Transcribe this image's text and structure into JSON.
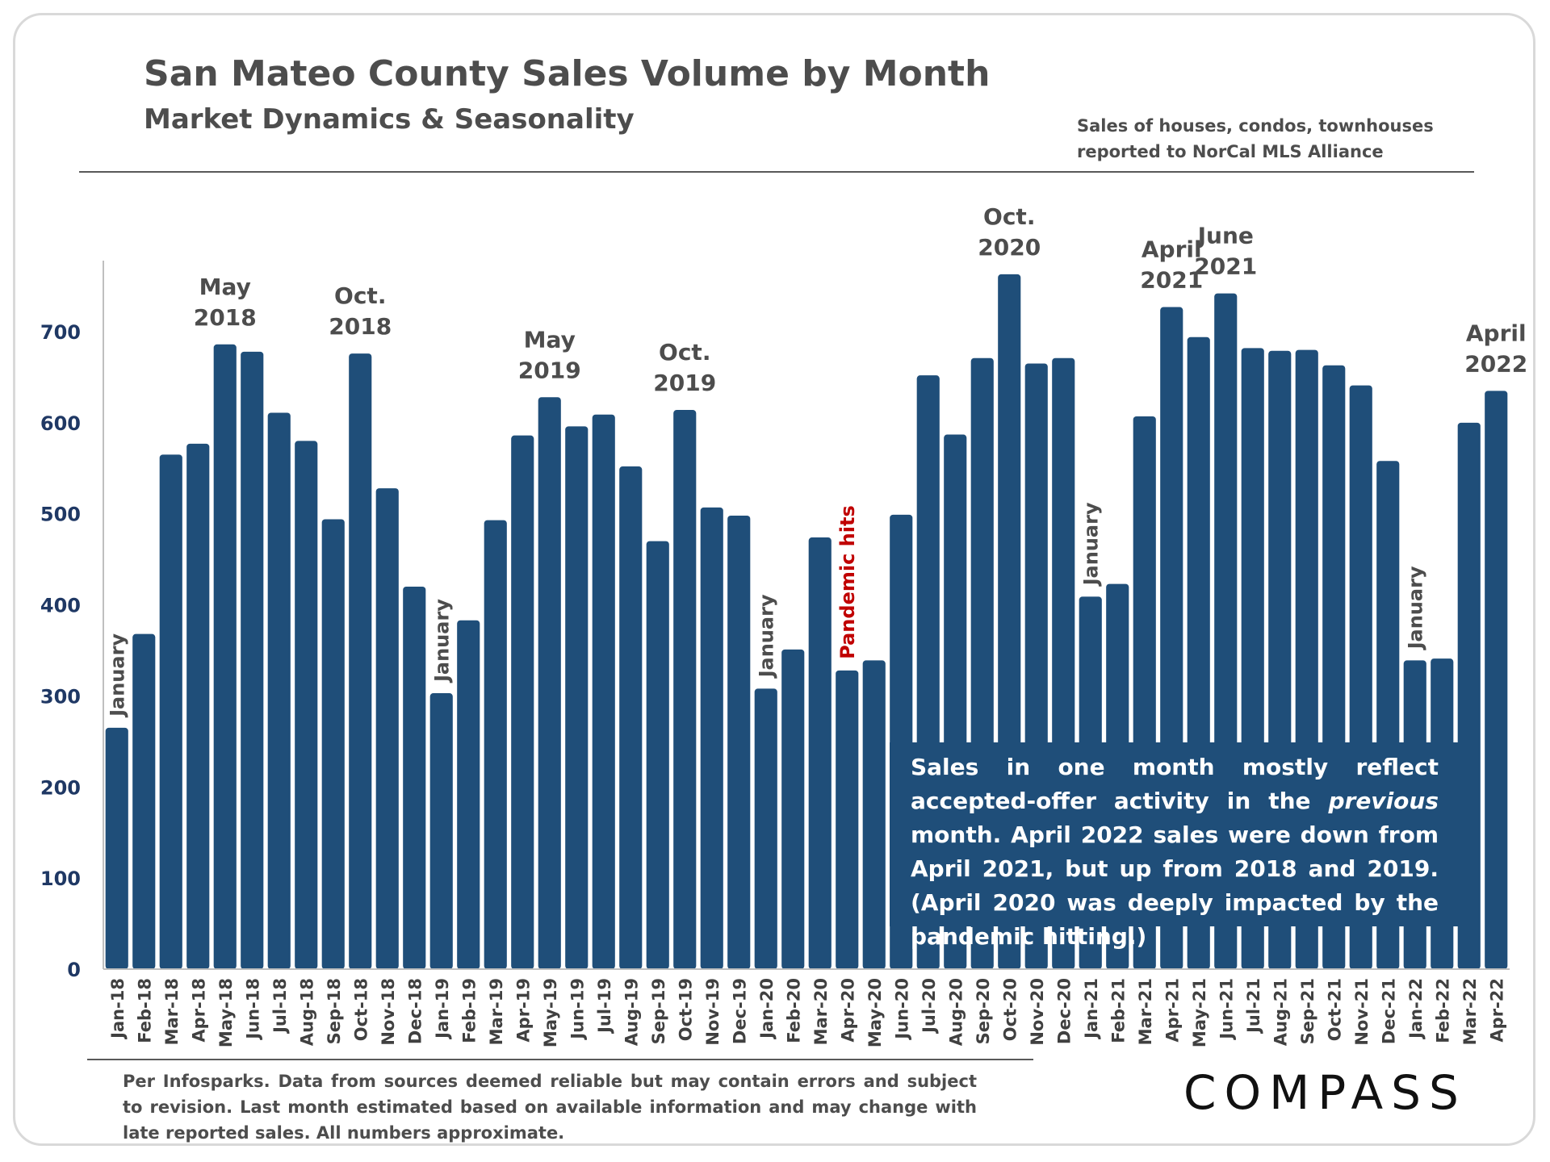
{
  "header": {
    "title": "San Mateo County Sales Volume by Month",
    "subtitle": "Market Dynamics & Seasonality",
    "source_lines": [
      "Sales of houses, condos, townhouses",
      "reported to NorCal MLS Alliance"
    ]
  },
  "callout": {
    "before_italic": "Sales in one month mostly reflect accepted-offer activity in the ",
    "italic": "previous",
    "after_italic": " month. April 2022 sales were down from April 2021, but up from 2018 and 2019. (April 2020 was deeply impacted by the pandemic hitting.)"
  },
  "footnote": "Per Infosparks. Data from sources deemed reliable but may contain errors and subject to revision. Last month estimated based on available information and may change with late reported sales. All numbers approximate.",
  "logo_text": "COMPASS",
  "colors": {
    "bar": "#1f4e79",
    "text": "#4d4d4d",
    "pandemic": "#c00000",
    "tick_label": "#1f3864"
  },
  "chart_data": {
    "type": "bar",
    "title": "San Mateo County Sales Volume by Month",
    "subtitle": "Market Dynamics & Seasonality",
    "categories": [
      "Jan-18",
      "Feb-18",
      "Mar-18",
      "Apr-18",
      "May-18",
      "Jun-18",
      "Jul-18",
      "Aug-18",
      "Sep-18",
      "Oct-18",
      "Nov-18",
      "Dec-18",
      "Jan-19",
      "Feb-19",
      "Mar-19",
      "Apr-19",
      "May-19",
      "Jun-19",
      "Jul-19",
      "Aug-19",
      "Sep-19",
      "Oct-19",
      "Nov-19",
      "Dec-19",
      "Jan-20",
      "Feb-20",
      "Mar-20",
      "Apr-20",
      "May-20",
      "Jun-20",
      "Jul-20",
      "Aug-20",
      "Sep-20",
      "Oct-20",
      "Nov-20",
      "Dec-20",
      "Jan-21",
      "Feb-21",
      "Mar-21",
      "Apr-21",
      "May-21",
      "Jun-21",
      "Jul-21",
      "Aug-21",
      "Sep-21",
      "Oct-21",
      "Nov-21",
      "Dec-21",
      "Jan-22",
      "Feb-22",
      "Mar-22",
      "Apr-22"
    ],
    "values": [
      265,
      368,
      565,
      577,
      686,
      678,
      611,
      580,
      494,
      676,
      528,
      420,
      303,
      383,
      493,
      586,
      628,
      596,
      609,
      552,
      470,
      614,
      507,
      498,
      308,
      351,
      474,
      328,
      339,
      499,
      652,
      587,
      671,
      763,
      665,
      671,
      409,
      423,
      607,
      727,
      694,
      742,
      682,
      679,
      680,
      663,
      641,
      558,
      339,
      341,
      600,
      635
    ],
    "ylim": [
      0,
      780
    ],
    "yticks": [
      0,
      100,
      200,
      300,
      400,
      500,
      600,
      700
    ],
    "xlabel": "",
    "ylabel": "",
    "grid": false,
    "annotations": [
      {
        "index": 4,
        "lines": [
          "May",
          "2018"
        ]
      },
      {
        "index": 9,
        "lines": [
          "Oct.",
          "2018"
        ]
      },
      {
        "index": 16,
        "lines": [
          "May",
          "2019"
        ]
      },
      {
        "index": 21,
        "lines": [
          "Oct.",
          "2019"
        ]
      },
      {
        "index": 33,
        "lines": [
          "Oct.",
          "2020"
        ]
      },
      {
        "index": 39,
        "lines": [
          "April",
          "2021"
        ]
      },
      {
        "index": 41,
        "lines": [
          "June",
          "2021"
        ]
      },
      {
        "index": 51,
        "lines": [
          "April",
          "2022"
        ]
      }
    ],
    "vertical_annotations": [
      {
        "index": 0,
        "text": "January",
        "style": "normal"
      },
      {
        "index": 12,
        "text": "January",
        "style": "normal"
      },
      {
        "index": 24,
        "text": "January",
        "style": "normal"
      },
      {
        "index": 27,
        "text": "Pandemic hits",
        "style": "pandemic"
      },
      {
        "index": 36,
        "text": "January",
        "style": "normal"
      },
      {
        "index": 48,
        "text": "January",
        "style": "normal"
      }
    ]
  }
}
